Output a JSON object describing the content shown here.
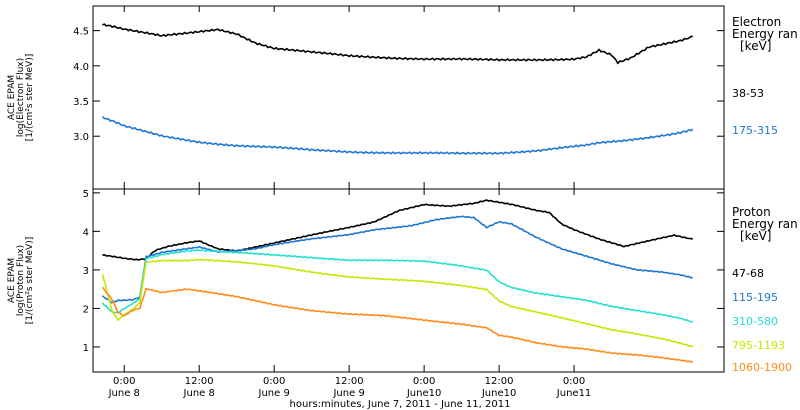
{
  "chart_data": [
    {
      "type": "line",
      "ylabel_lines": [
        "ACE EPAM",
        "log(Electron Flux)",
        "[1/(cm²s ster MeV)]"
      ],
      "ylim": [
        2.25,
        4.85
      ],
      "yticks": [
        3.0,
        3.5,
        4.0,
        4.5
      ],
      "ytick_labels": [
        "3.0",
        "3.5",
        "4.0",
        "4.5"
      ],
      "legend_title_lines": [
        "Electron",
        "Energy ran",
        "[keV]"
      ],
      "legend_placement": "right",
      "grid": false,
      "series": [
        {
          "name": "38-53",
          "color": "#000000",
          "points": [
            [
              -3.5,
              4.58
            ],
            [
              0,
              4.52
            ],
            [
              6,
              4.42
            ],
            [
              10,
              4.46
            ],
            [
              15,
              4.52
            ],
            [
              18,
              4.46
            ],
            [
              21,
              4.33
            ],
            [
              24,
              4.25
            ],
            [
              30,
              4.19
            ],
            [
              36,
              4.14
            ],
            [
              42,
              4.12
            ],
            [
              48,
              4.1
            ],
            [
              54,
              4.09
            ],
            [
              60,
              4.08
            ],
            [
              66,
              4.09
            ],
            [
              72,
              4.1
            ],
            [
              74,
              4.13
            ],
            [
              76,
              4.22
            ],
            [
              78,
              4.15
            ],
            [
              79,
              4.04
            ],
            [
              81,
              4.1
            ],
            [
              84,
              4.26
            ],
            [
              89,
              4.36
            ],
            [
              91,
              4.42
            ]
          ]
        },
        {
          "name": "175-315",
          "color": "#1f77d4",
          "points": [
            [
              -3.5,
              3.27
            ],
            [
              0,
              3.14
            ],
            [
              6,
              3.0
            ],
            [
              12,
              2.92
            ],
            [
              18,
              2.87
            ],
            [
              24,
              2.84
            ],
            [
              30,
              2.8
            ],
            [
              36,
              2.78
            ],
            [
              42,
              2.77
            ],
            [
              48,
              2.76
            ],
            [
              54,
              2.75
            ],
            [
              60,
              2.76
            ],
            [
              66,
              2.8
            ],
            [
              70,
              2.84
            ],
            [
              74,
              2.87
            ],
            [
              76,
              2.9
            ],
            [
              80,
              2.93
            ],
            [
              84,
              2.98
            ],
            [
              88,
              3.04
            ],
            [
              91,
              3.1
            ]
          ]
        }
      ]
    },
    {
      "type": "line",
      "ylabel_lines": [
        "ACE EPAM",
        "log(Proton Flux)",
        "[1/(cm²s ster MeV)]"
      ],
      "ylim": [
        0.35,
        5.1
      ],
      "yticks": [
        1,
        2,
        3,
        4,
        5
      ],
      "ytick_labels": [
        "1",
        "2",
        "3",
        "4",
        "5"
      ],
      "legend_title_lines": [
        "Proton",
        "Energy ran",
        "[keV]"
      ],
      "legend_placement": "right",
      "grid": false,
      "series": [
        {
          "name": "47-68",
          "color": "#000000",
          "points": [
            [
              -3.5,
              3.38
            ],
            [
              0,
              3.3
            ],
            [
              2,
              3.26
            ],
            [
              3.5,
              3.3
            ],
            [
              5,
              3.5
            ],
            [
              7,
              3.6
            ],
            [
              10,
              3.7
            ],
            [
              12,
              3.75
            ],
            [
              15,
              3.55
            ],
            [
              18,
              3.5
            ],
            [
              21,
              3.6
            ],
            [
              24,
              3.7
            ],
            [
              30,
              3.9
            ],
            [
              36,
              4.1
            ],
            [
              40,
              4.25
            ],
            [
              44,
              4.55
            ],
            [
              48,
              4.7
            ],
            [
              52,
              4.65
            ],
            [
              56,
              4.72
            ],
            [
              58,
              4.8
            ],
            [
              62,
              4.7
            ],
            [
              66,
              4.55
            ],
            [
              68,
              4.5
            ],
            [
              70,
              4.2
            ],
            [
              72,
              4.05
            ],
            [
              76,
              3.8
            ],
            [
              80,
              3.6
            ],
            [
              84,
              3.75
            ],
            [
              88,
              3.9
            ],
            [
              91,
              3.8
            ]
          ]
        },
        {
          "name": "115-195",
          "color": "#1f77d4",
          "points": [
            [
              -3.5,
              2.32
            ],
            [
              -2,
              2.15
            ],
            [
              -1,
              2.2
            ],
            [
              1.5,
              2.24
            ],
            [
              2.5,
              2.3
            ],
            [
              3.5,
              3.35
            ],
            [
              6,
              3.45
            ],
            [
              10,
              3.55
            ],
            [
              12,
              3.6
            ],
            [
              15,
              3.48
            ],
            [
              18,
              3.5
            ],
            [
              21,
              3.55
            ],
            [
              24,
              3.65
            ],
            [
              30,
              3.8
            ],
            [
              36,
              3.92
            ],
            [
              40,
              4.05
            ],
            [
              46,
              4.15
            ],
            [
              50,
              4.3
            ],
            [
              54,
              4.38
            ],
            [
              56,
              4.35
            ],
            [
              58,
              4.1
            ],
            [
              60,
              4.25
            ],
            [
              62,
              4.2
            ],
            [
              66,
              3.85
            ],
            [
              70,
              3.55
            ],
            [
              74,
              3.35
            ],
            [
              78,
              3.15
            ],
            [
              82,
              3.0
            ],
            [
              86,
              2.95
            ],
            [
              89,
              2.88
            ],
            [
              91,
              2.8
            ]
          ]
        },
        {
          "name": "310-580",
          "color": "#22e0d0",
          "points": [
            [
              -3.5,
              2.15
            ],
            [
              -2,
              1.9
            ],
            [
              -1,
              1.88
            ],
            [
              1.5,
              2.15
            ],
            [
              2.5,
              2.25
            ],
            [
              3.5,
              3.3
            ],
            [
              6,
              3.4
            ],
            [
              10,
              3.5
            ],
            [
              12,
              3.52
            ],
            [
              18,
              3.45
            ],
            [
              24,
              3.38
            ],
            [
              30,
              3.32
            ],
            [
              36,
              3.26
            ],
            [
              42,
              3.25
            ],
            [
              48,
              3.22
            ],
            [
              54,
              3.1
            ],
            [
              58,
              3.0
            ],
            [
              60,
              2.7
            ],
            [
              62,
              2.55
            ],
            [
              66,
              2.4
            ],
            [
              70,
              2.3
            ],
            [
              74,
              2.2
            ],
            [
              78,
              2.05
            ],
            [
              82,
              1.95
            ],
            [
              86,
              1.85
            ],
            [
              89,
              1.75
            ],
            [
              91,
              1.65
            ]
          ]
        },
        {
          "name": "795-1193",
          "color": "#c8e600",
          "points": [
            [
              -3.5,
              2.9
            ],
            [
              -3,
              2.6
            ],
            [
              -2,
              1.95
            ],
            [
              -1,
              1.7
            ],
            [
              1.5,
              2.0
            ],
            [
              2.5,
              2.15
            ],
            [
              3.5,
              3.2
            ],
            [
              6,
              3.25
            ],
            [
              10,
              3.25
            ],
            [
              12,
              3.27
            ],
            [
              18,
              3.2
            ],
            [
              24,
              3.1
            ],
            [
              30,
              2.95
            ],
            [
              36,
              2.82
            ],
            [
              42,
              2.75
            ],
            [
              48,
              2.7
            ],
            [
              54,
              2.6
            ],
            [
              58,
              2.5
            ],
            [
              60,
              2.2
            ],
            [
              62,
              2.05
            ],
            [
              66,
              1.9
            ],
            [
              70,
              1.75
            ],
            [
              74,
              1.6
            ],
            [
              78,
              1.45
            ],
            [
              82,
              1.35
            ],
            [
              86,
              1.22
            ],
            [
              89,
              1.1
            ],
            [
              91,
              1.0
            ]
          ]
        },
        {
          "name": "1060-1900",
          "color": "#ff8c1a",
          "points": [
            [
              -3.5,
              2.55
            ],
            [
              -2,
              2.25
            ],
            [
              -1,
              1.9
            ],
            [
              0,
              1.82
            ],
            [
              1.5,
              1.95
            ],
            [
              2.5,
              2.0
            ],
            [
              3.5,
              2.5
            ],
            [
              6,
              2.42
            ],
            [
              10,
              2.5
            ],
            [
              12,
              2.45
            ],
            [
              18,
              2.3
            ],
            [
              24,
              2.1
            ],
            [
              30,
              1.95
            ],
            [
              36,
              1.85
            ],
            [
              42,
              1.8
            ],
            [
              48,
              1.7
            ],
            [
              54,
              1.6
            ],
            [
              58,
              1.5
            ],
            [
              60,
              1.3
            ],
            [
              62,
              1.25
            ],
            [
              66,
              1.1
            ],
            [
              70,
              1.0
            ],
            [
              74,
              0.95
            ],
            [
              78,
              0.85
            ],
            [
              82,
              0.8
            ],
            [
              86,
              0.72
            ],
            [
              89,
              0.65
            ],
            [
              91,
              0.6
            ]
          ]
        }
      ]
    }
  ],
  "x_axis": {
    "xlim": [
      -5,
      96
    ],
    "unit": "hours since 2011-06-08 00:00 UT",
    "ticks": [
      {
        "hours": 0,
        "time": "0:00",
        "day": "June 8"
      },
      {
        "hours": 12,
        "time": "12:00",
        "day": "June 8"
      },
      {
        "hours": 24,
        "time": "0:00",
        "day": "June 9"
      },
      {
        "hours": 36,
        "time": "12:00",
        "day": "June 9"
      },
      {
        "hours": 48,
        "time": "0:00",
        "day": "June10"
      },
      {
        "hours": 60,
        "time": "12:00",
        "day": "June10"
      },
      {
        "hours": 72,
        "time": "0:00",
        "day": "June11"
      }
    ],
    "xlabel": "hours:minutes, June  7, 2011 - June 11, 2011"
  }
}
